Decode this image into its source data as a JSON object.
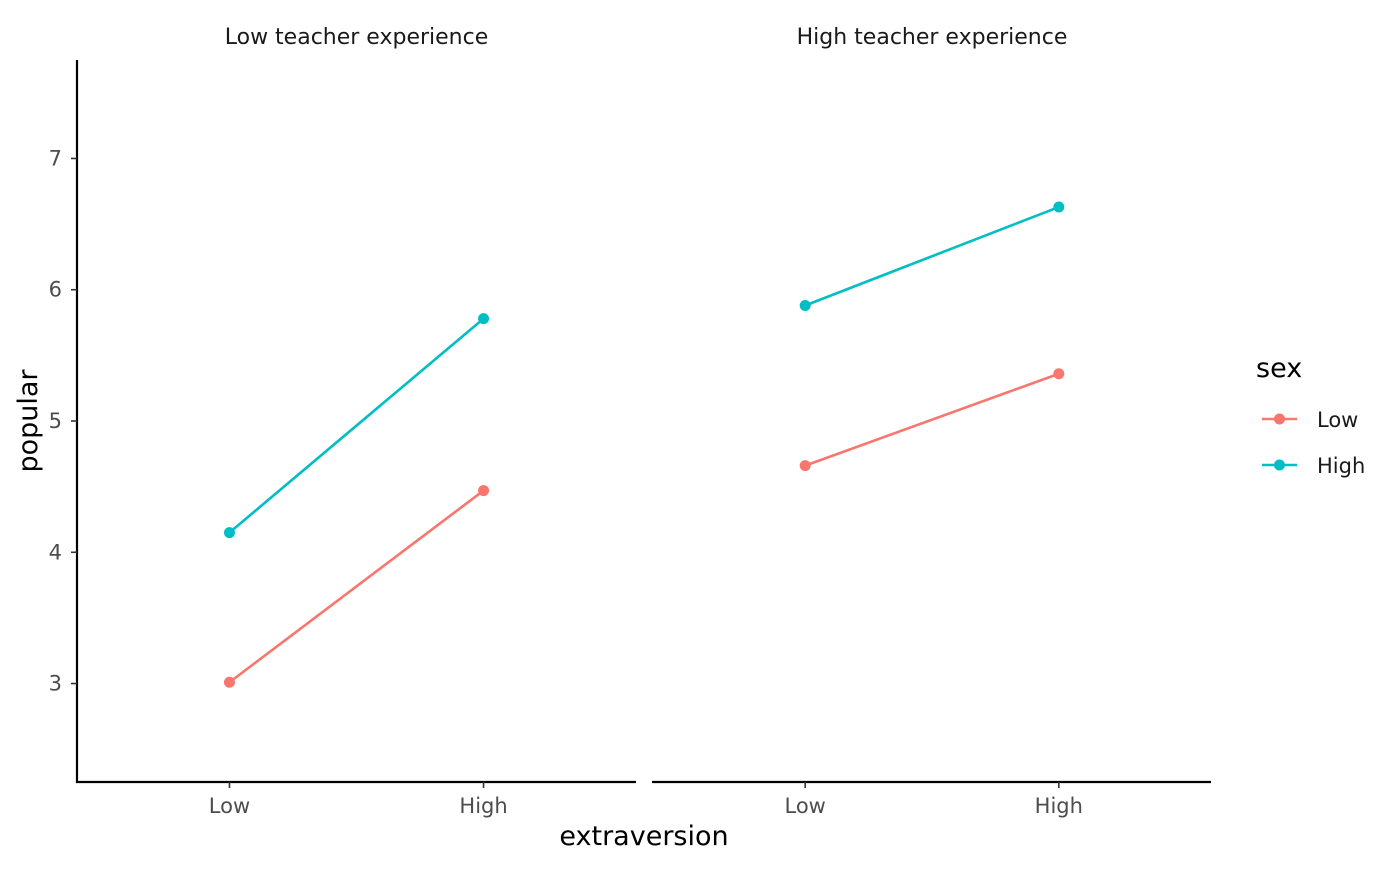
{
  "chart_data": {
    "type": "line",
    "facet_by": "teacher experience",
    "panels": [
      {
        "title": "Low teacher experience",
        "categories": [
          "Low",
          "High"
        ],
        "series": [
          {
            "name": "Low",
            "values": [
              3.01,
              4.47
            ]
          },
          {
            "name": "High",
            "values": [
              4.15,
              5.78
            ]
          }
        ]
      },
      {
        "title": "High teacher experience",
        "categories": [
          "Low",
          "High"
        ],
        "series": [
          {
            "name": "Low",
            "values": [
              4.66,
              5.36
            ]
          },
          {
            "name": "High",
            "values": [
              5.88,
              6.63
            ]
          }
        ]
      }
    ],
    "xlabel": "extraversion",
    "ylabel": "popular",
    "ylim": [
      2.25,
      7.75
    ],
    "yticks": [
      3,
      4,
      5,
      6,
      7
    ],
    "grid": false,
    "legend": {
      "title": "sex",
      "placement": "right",
      "entries": [
        {
          "label": "Low",
          "color": "#F8766D"
        },
        {
          "label": "High",
          "color": "#00BFC4"
        }
      ]
    },
    "series_colors": {
      "Low": "#F8766D",
      "High": "#00BFC4"
    }
  }
}
